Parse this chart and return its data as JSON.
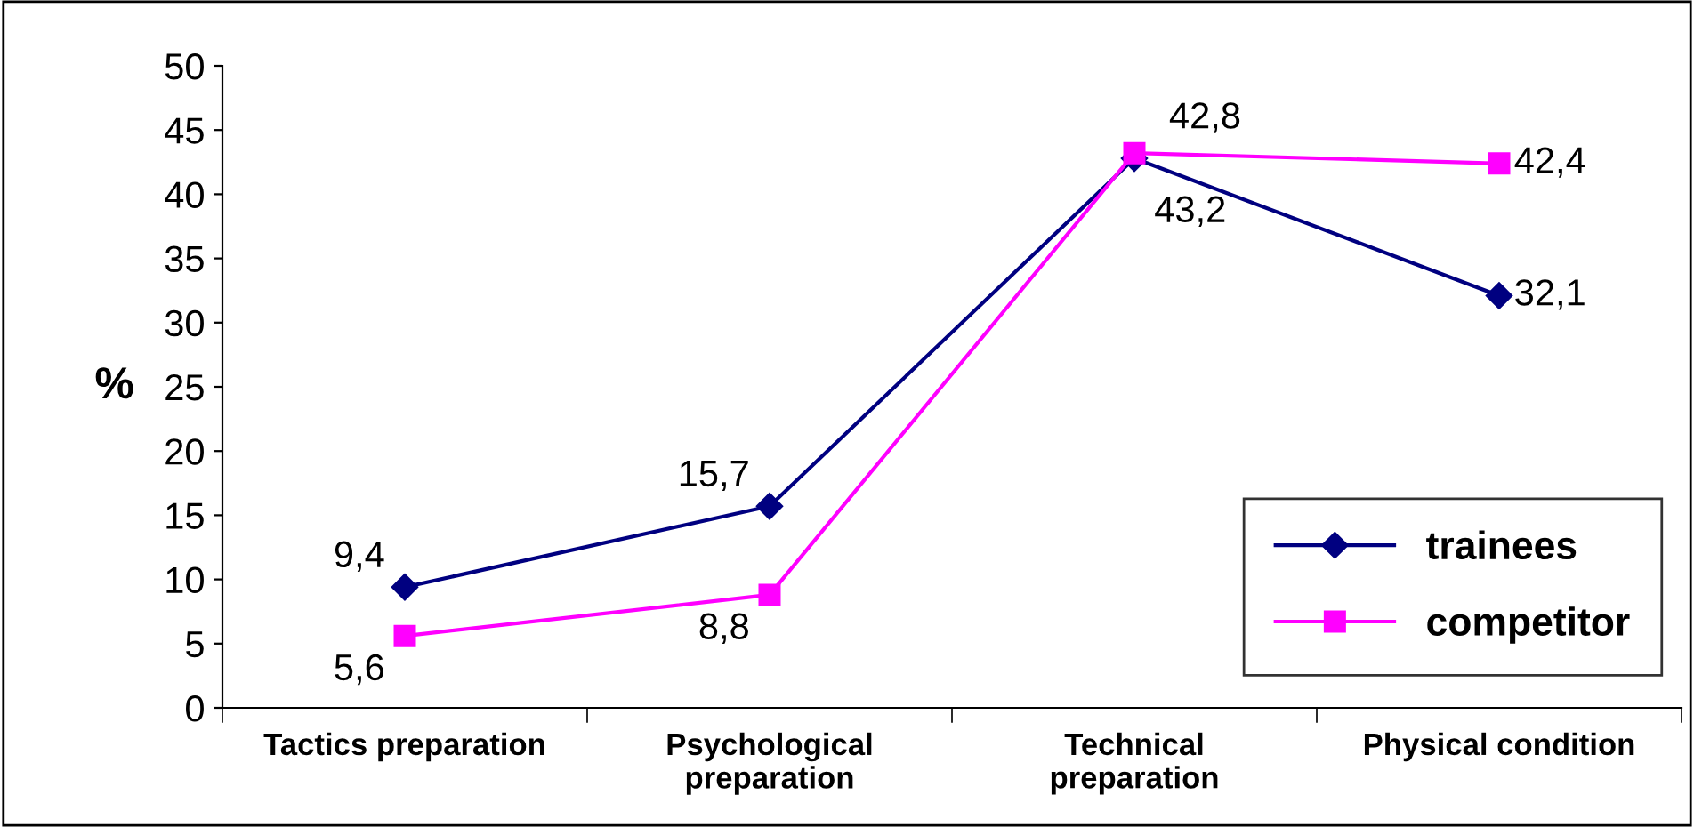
{
  "chart_data": {
    "type": "line",
    "ylabel": "%",
    "categories": [
      "Tactics preparation",
      "Psychological\npreparation",
      "Technical\npreparation",
      "Physical condition"
    ],
    "series": [
      {
        "name": "trainees",
        "color": "#000080",
        "values": [
          9.4,
          15.7,
          42.8,
          32.1
        ],
        "marker": "diamond",
        "value_labels": [
          "9,4",
          "15,7",
          "42,8",
          "32,1"
        ]
      },
      {
        "name": "competitor",
        "color": "#ff00ff",
        "values": [
          5.6,
          8.8,
          43.2,
          42.4
        ],
        "marker": "square",
        "value_labels": [
          "5,6",
          "8,8",
          "43,2",
          "42,4"
        ]
      }
    ],
    "ylim": [
      0,
      50
    ],
    "yticks": [
      0,
      5,
      10,
      15,
      20,
      25,
      30,
      35,
      40,
      45,
      50
    ],
    "legend": "bottom right",
    "grid": false
  }
}
